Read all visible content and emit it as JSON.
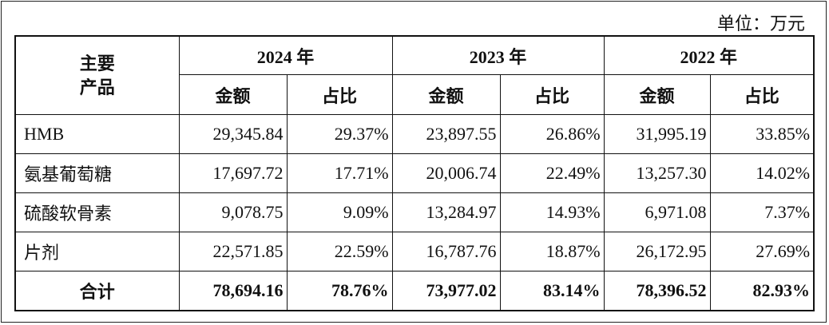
{
  "unit_label": "单位：万元",
  "header": {
    "product_col": [
      "主要",
      "产品"
    ],
    "years": [
      "2024 年",
      "2023 年",
      "2022 年"
    ],
    "amount_label": "金额",
    "ratio_label": "占比"
  },
  "rows": [
    {
      "product": "HMB",
      "values": [
        "29,345.84",
        "29.37%",
        "23,897.55",
        "26.86%",
        "31,995.19",
        "33.85%"
      ]
    },
    {
      "product": "氨基葡萄糖",
      "values": [
        "17,697.72",
        "17.71%",
        "20,006.74",
        "22.49%",
        "13,257.30",
        "14.02%"
      ]
    },
    {
      "product": "硫酸软骨素",
      "values": [
        "9,078.75",
        "9.09%",
        "13,284.97",
        "14.93%",
        "6,971.08",
        "7.37%"
      ]
    },
    {
      "product": "片剂",
      "values": [
        "22,571.85",
        "22.59%",
        "16,787.76",
        "18.87%",
        "26,172.95",
        "27.69%"
      ]
    }
  ],
  "total": {
    "product": "合计",
    "values": [
      "78,694.16",
      "78.76%",
      "73,977.02",
      "83.14%",
      "78,396.52",
      "82.93%"
    ]
  }
}
